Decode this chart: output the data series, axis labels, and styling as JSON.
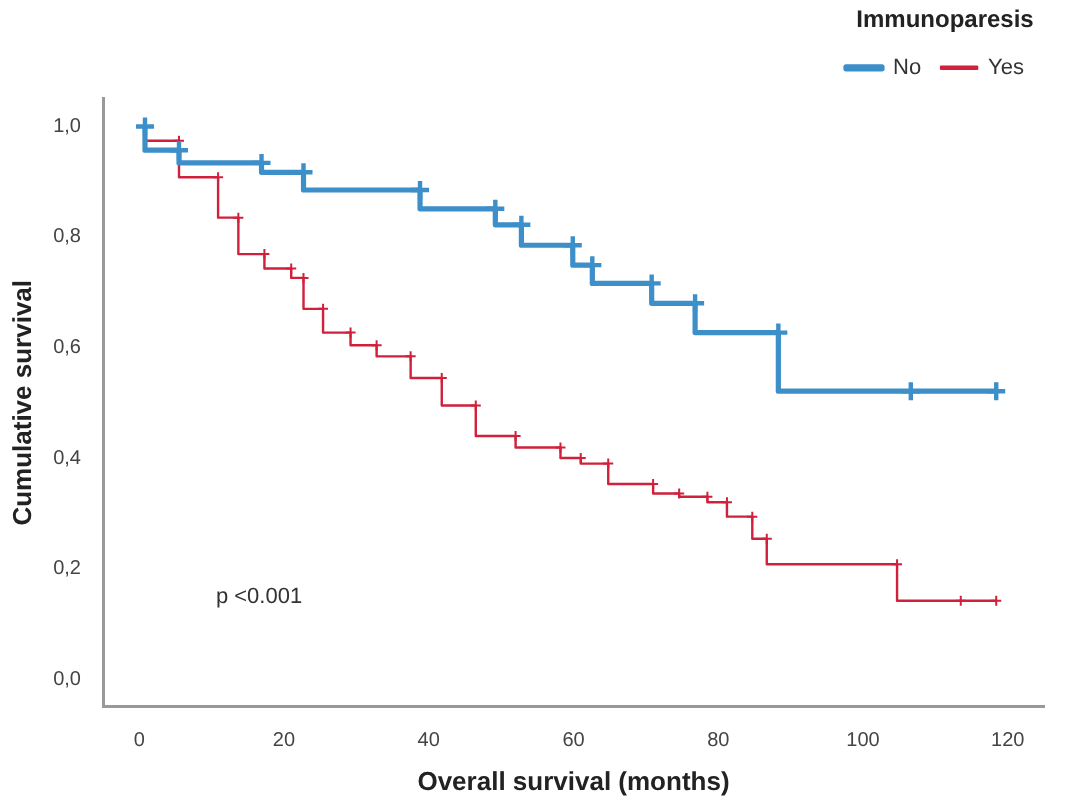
{
  "chart_data": {
    "type": "step",
    "xlabel": "Overall survival (months)",
    "ylabel": "Cumulative survival",
    "legend_title": "Immunoparesis",
    "legend": "top right",
    "marker": "cross",
    "grid": false,
    "xlim": [
      -5,
      125
    ],
    "xticks": [
      0,
      20,
      40,
      60,
      80,
      100,
      120
    ],
    "ylim": [
      -0.05,
      1.05
    ],
    "yticks": [
      {
        "value": 0,
        "label": "0,0"
      },
      {
        "value": 0.2,
        "label": "0,2"
      },
      {
        "value": 0.4,
        "label": "0,4"
      },
      {
        "value": 0.6,
        "label": "0,6"
      },
      {
        "value": 0.8,
        "label": "0,8"
      },
      {
        "value": 1,
        "label": "1,0"
      }
    ],
    "annotations": [
      "p <0.001"
    ],
    "series": [
      {
        "name": "No",
        "color": "#3c8fc8",
        "x": [
          0.8,
          5.5,
          16.9,
          22.7,
          38.8,
          49.2,
          52.8,
          59.9,
          62.6,
          70.8,
          76.8,
          88.3,
          106.6,
          118.4
        ],
        "values": [
          1,
          0.957,
          0.934,
          0.917,
          0.885,
          0.851,
          0.822,
          0.785,
          0.749,
          0.716,
          0.68,
          0.627,
          0.521,
          0.521
        ]
      },
      {
        "name": "Yes",
        "color": "#d0203c",
        "x": [
          0.8,
          5.5,
          10.9,
          13.7,
          17.3,
          21,
          22.7,
          25.4,
          29.2,
          32.8,
          37.5,
          41.8,
          46.5,
          52,
          58.2,
          61,
          64.8,
          71,
          74.6,
          78.5,
          81.2,
          84.7,
          86.7,
          104.7,
          113.5,
          118.4
        ],
        "values": [
          1,
          0.974,
          0.908,
          0.835,
          0.769,
          0.743,
          0.726,
          0.67,
          0.627,
          0.604,
          0.584,
          0.545,
          0.495,
          0.44,
          0.419,
          0.4,
          0.39,
          0.353,
          0.336,
          0.33,
          0.32,
          0.294,
          0.254,
          0.208,
          0.142,
          0.142
        ]
      }
    ]
  }
}
